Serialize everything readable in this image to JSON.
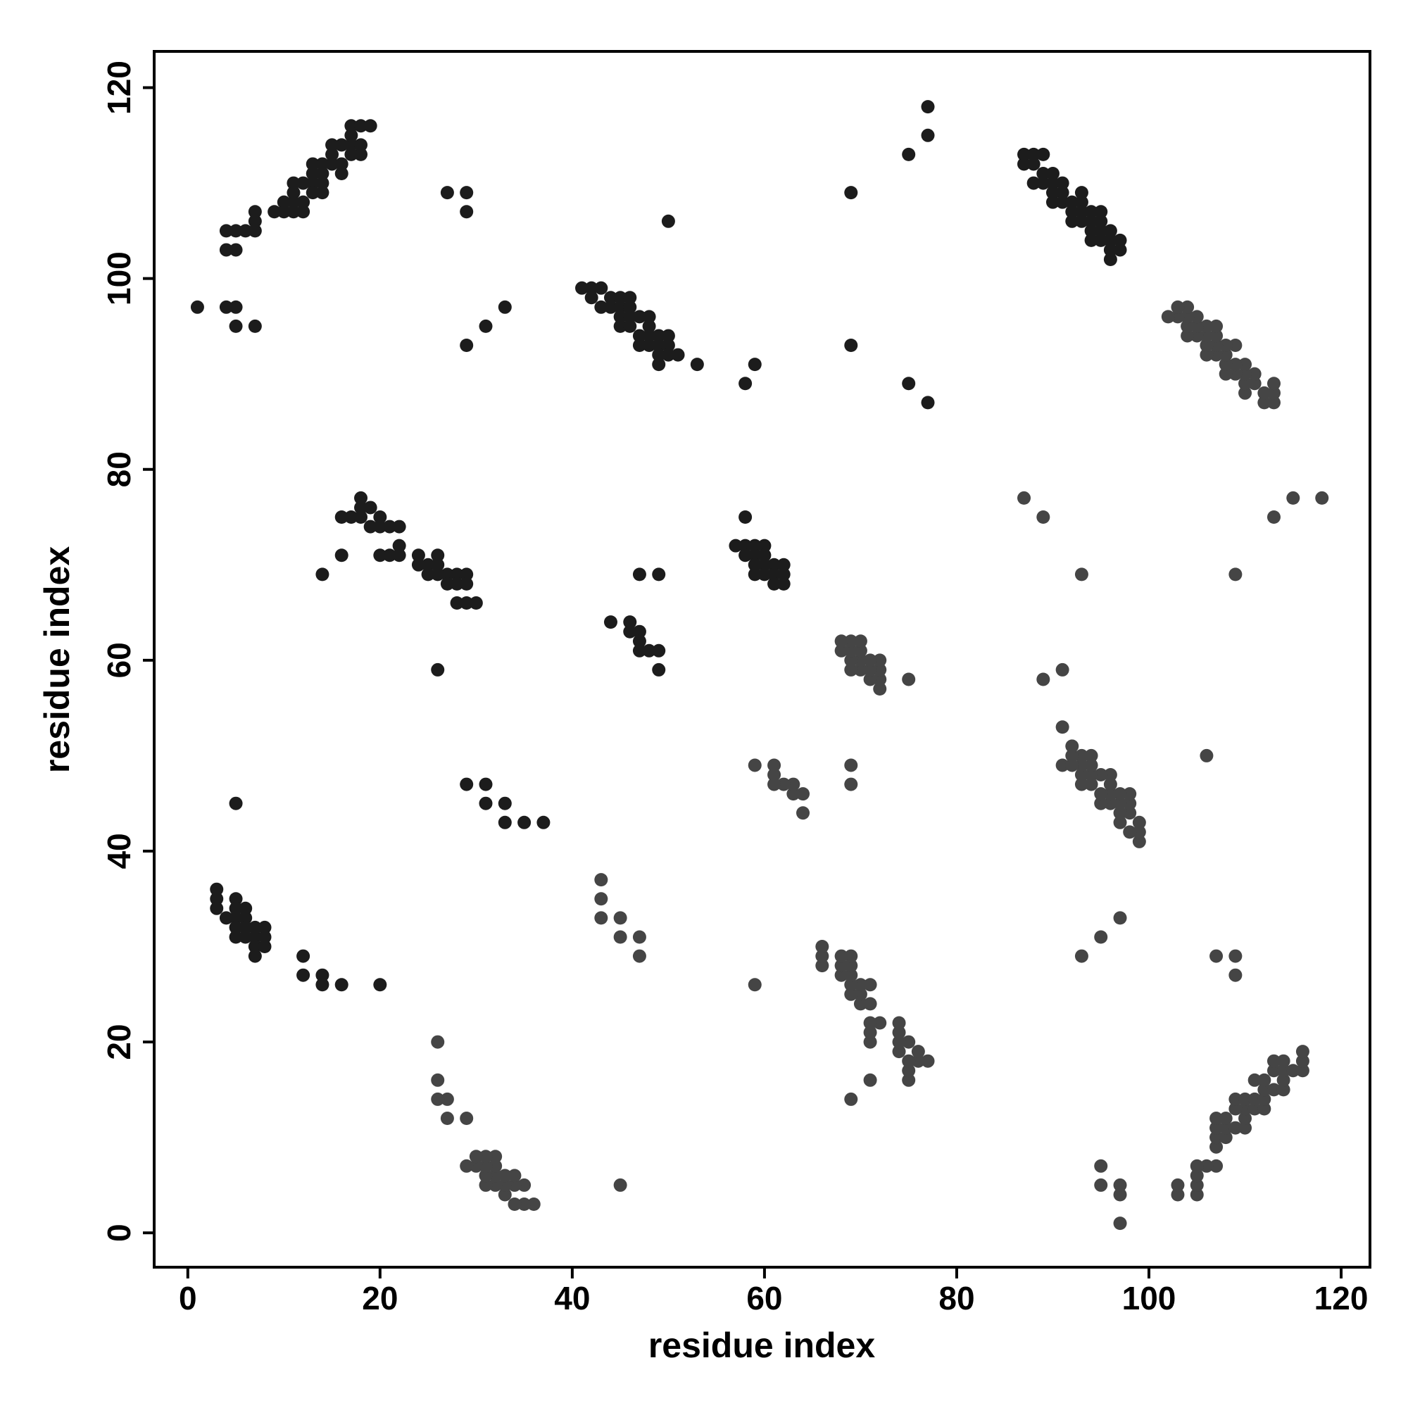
{
  "chart_data": {
    "type": "scatter",
    "x_label": "residue index",
    "y_label": "residue index",
    "xlim": [
      -3.5,
      123
    ],
    "ylim": [
      -3.6,
      123.8
    ],
    "xticks": [
      0,
      20,
      40,
      60,
      80,
      100,
      120
    ],
    "yticks": [
      0,
      20,
      40,
      60,
      80,
      100,
      120
    ],
    "series": [
      {
        "color": "#1c1c1c",
        "x": [
          4,
          5,
          6,
          4,
          5,
          7,
          7,
          7,
          9,
          10,
          10,
          11,
          11,
          11,
          11,
          12,
          12,
          12,
          13,
          13,
          13,
          13,
          14,
          14,
          14,
          14,
          15,
          15,
          15,
          16,
          16,
          16,
          17,
          17,
          17,
          17,
          18,
          18,
          18,
          19,
          1,
          4,
          5,
          5,
          7,
          27,
          29,
          29,
          29,
          31,
          33,
          50,
          41,
          42,
          43,
          42,
          43,
          44,
          44,
          45,
          45,
          45,
          45,
          46,
          46,
          46,
          46,
          47,
          47,
          47,
          48,
          48,
          48,
          48,
          49,
          49,
          49,
          49,
          50,
          50,
          50,
          51,
          53,
          58,
          59,
          69,
          69,
          75,
          77,
          77,
          75,
          77,
          87,
          88,
          89,
          87,
          88,
          89,
          88,
          89,
          90,
          90,
          90,
          90,
          91,
          91,
          91,
          92,
          92,
          92,
          93,
          93,
          93,
          93,
          94,
          94,
          94,
          94,
          95,
          95,
          95,
          95,
          96,
          96,
          96,
          96,
          97,
          97,
          16,
          17,
          18,
          18,
          18,
          19,
          19,
          20,
          20,
          21,
          22,
          22,
          20,
          21,
          22,
          16,
          14,
          24,
          24,
          25,
          25,
          26,
          26,
          26,
          27,
          27,
          28,
          28,
          28,
          29,
          29,
          29,
          30,
          26,
          44,
          46,
          46,
          47,
          47,
          47,
          48,
          49,
          49,
          47,
          49,
          57,
          58,
          59,
          60,
          58,
          59,
          60,
          59,
          60,
          61,
          62,
          59,
          60,
          61,
          62,
          61,
          62,
          58,
          29,
          31,
          31,
          33,
          33,
          35,
          37,
          5,
          3,
          3,
          3,
          4,
          5,
          5,
          5,
          5,
          5,
          6,
          6,
          6,
          6,
          7,
          7,
          7,
          7,
          8,
          8,
          8,
          12,
          12,
          14,
          14,
          16,
          20
        ],
        "y": [
          105,
          105,
          105,
          103,
          103,
          107,
          106,
          105,
          107,
          107,
          108,
          107,
          108,
          109,
          110,
          107,
          108,
          110,
          110,
          109,
          111,
          112,
          109,
          110,
          111,
          112,
          112,
          113,
          114,
          111,
          112,
          114,
          113,
          114,
          115,
          116,
          113,
          114,
          116,
          116,
          97,
          97,
          97,
          95,
          95,
          109,
          109,
          107,
          93,
          95,
          97,
          106,
          99,
          99,
          99,
          98,
          97,
          98,
          97,
          98,
          97,
          96,
          95,
          98,
          97,
          96,
          95,
          96,
          94,
          93,
          96,
          95,
          94,
          93,
          94,
          93,
          91,
          92,
          94,
          93,
          92,
          92,
          91,
          89,
          91,
          109,
          93,
          113,
          115,
          118,
          89,
          87,
          113,
          113,
          113,
          112,
          112,
          111,
          110,
          110,
          111,
          110,
          109,
          108,
          110,
          109,
          108,
          108,
          107,
          106,
          109,
          108,
          107,
          106,
          107,
          106,
          105,
          104,
          107,
          106,
          105,
          104,
          105,
          104,
          103,
          102,
          104,
          103,
          75,
          75,
          77,
          76,
          75,
          76,
          74,
          75,
          74,
          74,
          74,
          72,
          71,
          71,
          71,
          71,
          69,
          71,
          70,
          70,
          69,
          71,
          70,
          69,
          69,
          68,
          69,
          68,
          66,
          69,
          68,
          66,
          66,
          59,
          64,
          64,
          63,
          63,
          62,
          61,
          61,
          61,
          59,
          69,
          69,
          72,
          72,
          72,
          72,
          71,
          71,
          71,
          70,
          70,
          70,
          70,
          69,
          69,
          69,
          69,
          68,
          68,
          75,
          47,
          47,
          45,
          45,
          43,
          43,
          43,
          45,
          36,
          35,
          34,
          33,
          35,
          34,
          33,
          32,
          31,
          34,
          33,
          32,
          31,
          32,
          31,
          30,
          29,
          32,
          31,
          30,
          29,
          27,
          27,
          26,
          26,
          26
        ]
      },
      {
        "color": "#454545",
        "x": [
          105,
          105,
          105,
          103,
          103,
          107,
          106,
          105,
          107,
          107,
          108,
          107,
          108,
          109,
          110,
          107,
          108,
          110,
          110,
          109,
          111,
          112,
          109,
          110,
          111,
          112,
          112,
          113,
          114,
          111,
          112,
          114,
          113,
          114,
          115,
          116,
          113,
          114,
          116,
          116,
          97,
          97,
          97,
          95,
          95,
          109,
          109,
          107,
          93,
          95,
          97,
          106,
          99,
          99,
          99,
          98,
          97,
          98,
          97,
          98,
          97,
          96,
          95,
          98,
          97,
          96,
          95,
          96,
          94,
          93,
          96,
          95,
          94,
          93,
          94,
          93,
          91,
          92,
          94,
          93,
          92,
          92,
          91,
          89,
          91,
          109,
          93,
          113,
          115,
          118,
          89,
          87,
          113,
          113,
          113,
          112,
          112,
          111,
          110,
          110,
          111,
          110,
          109,
          108,
          110,
          109,
          108,
          108,
          107,
          106,
          109,
          108,
          107,
          106,
          107,
          106,
          105,
          104,
          107,
          106,
          105,
          104,
          105,
          104,
          103,
          102,
          104,
          103,
          75,
          75,
          77,
          76,
          75,
          76,
          74,
          75,
          74,
          74,
          74,
          72,
          71,
          71,
          71,
          71,
          69,
          71,
          70,
          70,
          69,
          71,
          70,
          69,
          69,
          68,
          69,
          68,
          66,
          69,
          68,
          66,
          66,
          59,
          64,
          64,
          63,
          63,
          62,
          61,
          61,
          61,
          59,
          69,
          69,
          72,
          72,
          72,
          72,
          71,
          71,
          71,
          70,
          70,
          70,
          70,
          69,
          69,
          69,
          69,
          68,
          68,
          75,
          47,
          47,
          45,
          45,
          43,
          43,
          43,
          45,
          36,
          35,
          34,
          33,
          35,
          34,
          33,
          32,
          31,
          34,
          33,
          32,
          31,
          32,
          31,
          30,
          29,
          32,
          31,
          30,
          29,
          27,
          27,
          26,
          26,
          26
        ],
        "y": [
          4,
          5,
          6,
          4,
          5,
          7,
          7,
          7,
          9,
          10,
          10,
          11,
          11,
          11,
          11,
          12,
          12,
          12,
          13,
          13,
          13,
          13,
          14,
          14,
          14,
          14,
          15,
          15,
          15,
          16,
          16,
          16,
          17,
          17,
          17,
          17,
          18,
          18,
          18,
          19,
          1,
          4,
          5,
          5,
          7,
          27,
          29,
          29,
          29,
          31,
          33,
          50,
          41,
          42,
          43,
          42,
          43,
          44,
          44,
          45,
          45,
          45,
          45,
          46,
          46,
          46,
          46,
          47,
          47,
          47,
          48,
          48,
          48,
          48,
          49,
          49,
          49,
          49,
          50,
          50,
          50,
          51,
          53,
          58,
          59,
          69,
          69,
          75,
          77,
          77,
          75,
          77,
          87,
          88,
          89,
          87,
          88,
          89,
          88,
          89,
          90,
          90,
          90,
          90,
          91,
          91,
          91,
          92,
          92,
          92,
          93,
          93,
          93,
          93,
          94,
          94,
          94,
          94,
          95,
          95,
          95,
          95,
          96,
          96,
          96,
          96,
          97,
          97,
          16,
          17,
          18,
          18,
          18,
          19,
          19,
          20,
          20,
          21,
          22,
          22,
          20,
          21,
          22,
          16,
          14,
          24,
          24,
          25,
          25,
          26,
          26,
          26,
          27,
          27,
          28,
          28,
          28,
          29,
          29,
          29,
          30,
          26,
          44,
          46,
          46,
          47,
          47,
          47,
          48,
          49,
          49,
          47,
          49,
          57,
          58,
          59,
          60,
          58,
          59,
          60,
          59,
          60,
          61,
          62,
          59,
          60,
          61,
          62,
          61,
          62,
          58,
          29,
          31,
          31,
          33,
          33,
          35,
          37,
          5,
          3,
          3,
          3,
          4,
          5,
          5,
          5,
          5,
          5,
          6,
          6,
          6,
          6,
          7,
          7,
          7,
          7,
          8,
          8,
          8,
          12,
          12,
          14,
          14,
          16,
          20
        ]
      }
    ]
  }
}
